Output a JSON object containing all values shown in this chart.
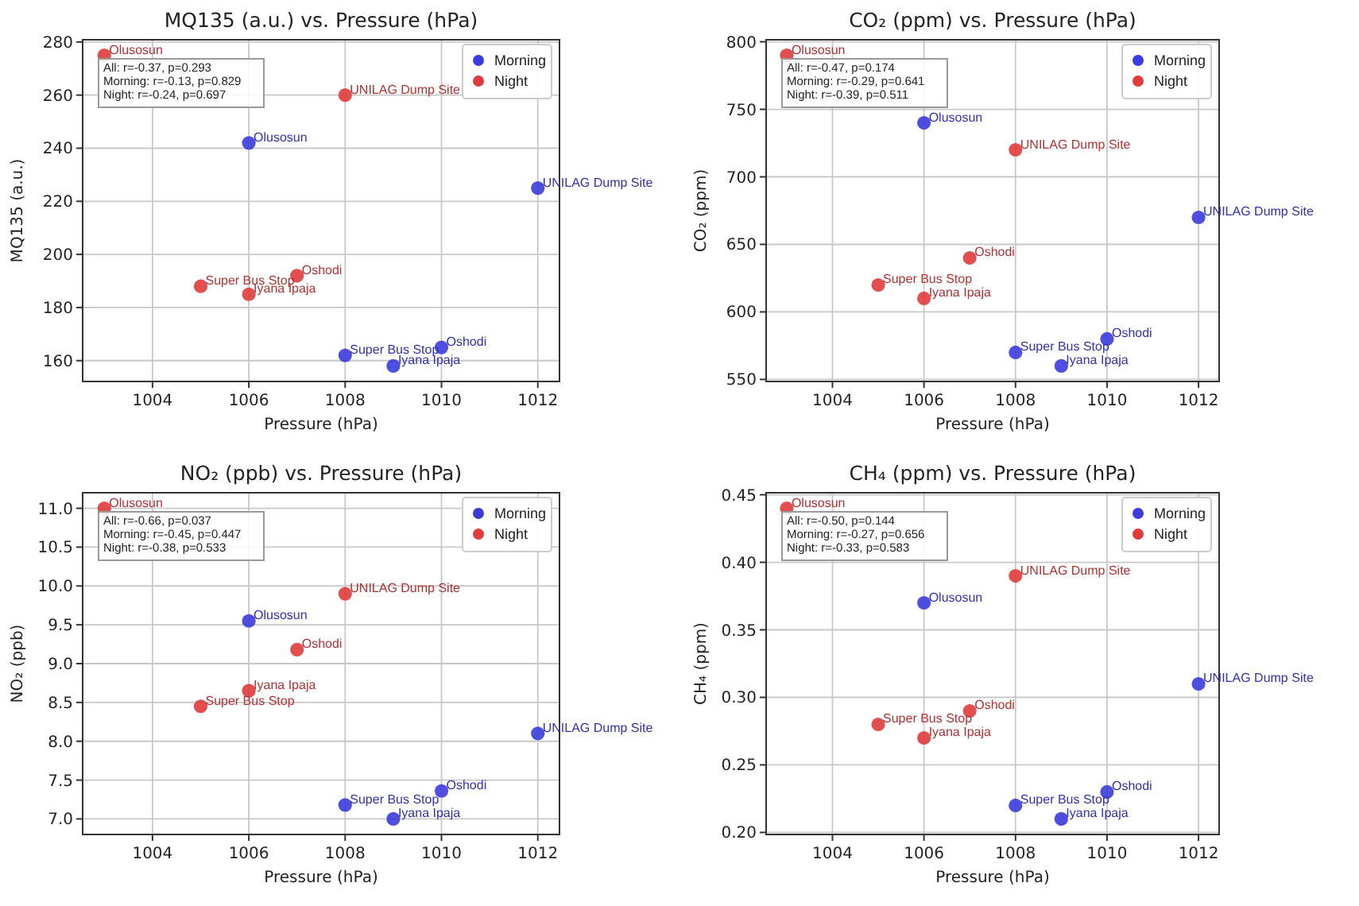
{
  "chart_data": [
    {
      "type": "scatter",
      "title": "MQ135 (a.u.) vs. Pressure (hPa)",
      "xlabel": "Pressure (hPa)",
      "ylabel": "MQ135 (a.u.)",
      "xlim": [
        1002.55,
        1012.45
      ],
      "xticks": [
        1004,
        1006,
        1008,
        1010,
        1012
      ],
      "ylim": [
        152.15,
        280.85
      ],
      "yticks": [
        160,
        180,
        200,
        220,
        240,
        260,
        280
      ],
      "grid": true,
      "legend": "top right",
      "marker": "circle",
      "series": [
        {
          "name": "Morning",
          "color": "#3c3cdc",
          "x": [
            1006,
            1012,
            1008,
            1010,
            1009
          ],
          "values": [
            242,
            225,
            162,
            165,
            158
          ]
        },
        {
          "name": "Night",
          "color": "#e03c3c",
          "x": [
            1003,
            1008,
            1007,
            1005,
            1006
          ],
          "values": [
            275,
            260,
            192,
            188,
            185
          ]
        }
      ],
      "annotations": [
        "All: r=-0.37, p=0.293",
        "Morning: r=-0.13, p=0.829",
        "Night: r=-0.24, p=0.697",
        {
          "text": "Olusosun",
          "x": 1006,
          "y": 242
        },
        {
          "text": "UNILAG Dump Site",
          "x": 1012,
          "y": 225
        },
        {
          "text": "Super Bus Stop",
          "x": 1008,
          "y": 162
        },
        {
          "text": "Oshodi",
          "x": 1010,
          "y": 165
        },
        {
          "text": "Iyana Ipaja",
          "x": 1009,
          "y": 158
        },
        {
          "text": "Olusosun",
          "x": 1003,
          "y": 275
        },
        {
          "text": "UNILAG Dump Site",
          "x": 1008,
          "y": 260
        },
        {
          "text": "Oshodi",
          "x": 1007,
          "y": 192
        },
        {
          "text": "Super Bus Stop",
          "x": 1005,
          "y": 188
        },
        {
          "text": "Iyana Ipaja",
          "x": 1006,
          "y": 185
        }
      ]
    },
    {
      "type": "scatter",
      "title": "CO₂ (ppm) vs. Pressure (hPa)",
      "xlabel": "Pressure (hPa)",
      "ylabel": "CO₂ (ppm)",
      "xlim": [
        1002.55,
        1012.45
      ],
      "xticks": [
        1004,
        1006,
        1008,
        1010,
        1012
      ],
      "ylim": [
        548.5,
        801.5
      ],
      "yticks": [
        550,
        600,
        650,
        700,
        750,
        800
      ],
      "grid": true,
      "legend": "top right",
      "marker": "circle",
      "series": [
        {
          "name": "Morning",
          "color": "#3c3cdc",
          "x": [
            1006,
            1012,
            1008,
            1010,
            1009
          ],
          "values": [
            740,
            670,
            570,
            580,
            560
          ]
        },
        {
          "name": "Night",
          "color": "#e03c3c",
          "x": [
            1003,
            1008,
            1007,
            1005,
            1006
          ],
          "values": [
            790,
            720,
            640,
            620,
            610
          ]
        }
      ],
      "annotations": [
        "All: r=-0.47, p=0.174",
        "Morning: r=-0.29, p=0.641",
        "Night: r=-0.39, p=0.511",
        {
          "text": "Olusosun",
          "x": 1006,
          "y": 740
        },
        {
          "text": "UNILAG Dump Site",
          "x": 1012,
          "y": 670
        },
        {
          "text": "Super Bus Stop",
          "x": 1008,
          "y": 570
        },
        {
          "text": "Oshodi",
          "x": 1010,
          "y": 580
        },
        {
          "text": "Iyana Ipaja",
          "x": 1009,
          "y": 560
        },
        {
          "text": "Olusosun",
          "x": 1003,
          "y": 790
        },
        {
          "text": "UNILAG Dump Site",
          "x": 1008,
          "y": 720
        },
        {
          "text": "Oshodi",
          "x": 1007,
          "y": 640
        },
        {
          "text": "Super Bus Stop",
          "x": 1005,
          "y": 620
        },
        {
          "text": "Iyana Ipaja",
          "x": 1006,
          "y": 610
        }
      ]
    },
    {
      "type": "scatter",
      "title": "NO₂ (ppb) vs. Pressure (hPa)",
      "xlabel": "Pressure (hPa)",
      "ylabel": "NO₂ (ppb)",
      "xlim": [
        1002.55,
        1012.45
      ],
      "xticks": [
        1004,
        1006,
        1008,
        1010,
        1012
      ],
      "ylim": [
        6.8,
        11.2
      ],
      "yticks": [
        {
          "value": 7,
          "label": "7.0"
        },
        7.5,
        {
          "value": 8,
          "label": "8.0"
        },
        8.5,
        {
          "value": 9,
          "label": "9.0"
        },
        9.5,
        {
          "value": 10,
          "label": "10.0"
        },
        10.5,
        {
          "value": 11,
          "label": "11.0"
        }
      ],
      "grid": true,
      "legend": "top right",
      "marker": "circle",
      "series": [
        {
          "name": "Morning",
          "color": "#3c3cdc",
          "x": [
            1006,
            1012,
            1008,
            1010,
            1009
          ],
          "values": [
            9.55,
            8.1,
            7.18,
            7.36,
            7.0
          ]
        },
        {
          "name": "Night",
          "color": "#e03c3c",
          "x": [
            1003,
            1008,
            1007,
            1005,
            1006
          ],
          "values": [
            11.0,
            9.9,
            9.18,
            8.45,
            8.65
          ]
        }
      ],
      "annotations": [
        "All: r=-0.66, p=0.037",
        "Morning: r=-0.45, p=0.447",
        "Night: r=-0.38, p=0.533",
        {
          "text": "Olusosun",
          "x": 1006,
          "y": 9.55
        },
        {
          "text": "UNILAG Dump Site",
          "x": 1012,
          "y": 8.1
        },
        {
          "text": "Super Bus Stop",
          "x": 1008,
          "y": 7.18
        },
        {
          "text": "Oshodi",
          "x": 1010,
          "y": 7.36
        },
        {
          "text": "Iyana Ipaja",
          "x": 1009,
          "y": 7.0
        },
        {
          "text": "Olusosun",
          "x": 1003,
          "y": 11.0
        },
        {
          "text": "UNILAG Dump Site",
          "x": 1008,
          "y": 9.9
        },
        {
          "text": "Oshodi",
          "x": 1007,
          "y": 9.18
        },
        {
          "text": "Super Bus Stop",
          "x": 1005,
          "y": 8.45
        },
        {
          "text": "Iyana Ipaja",
          "x": 1006,
          "y": 8.65
        }
      ]
    },
    {
      "type": "scatter",
      "title": "CH₄ (ppm) vs. Pressure (hPa)",
      "xlabel": "Pressure (hPa)",
      "ylabel": "CH₄ (ppm)",
      "xlim": [
        1002.55,
        1012.45
      ],
      "xticks": [
        1004,
        1006,
        1008,
        1010,
        1012
      ],
      "ylim": [
        0.1985,
        0.4515
      ],
      "yticks": [
        {
          "value": 0.2,
          "label": "0.20"
        },
        0.25,
        {
          "value": 0.3,
          "label": "0.30"
        },
        0.35,
        {
          "value": 0.4,
          "label": "0.40"
        },
        0.45
      ],
      "grid": true,
      "legend": "top right",
      "marker": "circle",
      "series": [
        {
          "name": "Morning",
          "color": "#3c3cdc",
          "x": [
            1006,
            1012,
            1008,
            1010,
            1009
          ],
          "values": [
            0.37,
            0.31,
            0.22,
            0.23,
            0.21
          ]
        },
        {
          "name": "Night",
          "color": "#e03c3c",
          "x": [
            1003,
            1008,
            1007,
            1005,
            1006
          ],
          "values": [
            0.44,
            0.39,
            0.29,
            0.28,
            0.27
          ]
        }
      ],
      "annotations": [
        "All: r=-0.50, p=0.144",
        "Morning: r=-0.27, p=0.656",
        "Night: r=-0.33, p=0.583",
        {
          "text": "Olusosun",
          "x": 1006,
          "y": 0.37
        },
        {
          "text": "UNILAG Dump Site",
          "x": 1012,
          "y": 0.31
        },
        {
          "text": "Super Bus Stop",
          "x": 1008,
          "y": 0.22
        },
        {
          "text": "Oshodi",
          "x": 1010,
          "y": 0.23
        },
        {
          "text": "Iyana Ipaja",
          "x": 1009,
          "y": 0.21
        },
        {
          "text": "Olusosun",
          "x": 1003,
          "y": 0.44
        },
        {
          "text": "UNILAG Dump Site",
          "x": 1008,
          "y": 0.39
        },
        {
          "text": "Oshodi",
          "x": 1007,
          "y": 0.29
        },
        {
          "text": "Super Bus Stop",
          "x": 1005,
          "y": 0.28
        },
        {
          "text": "Iyana Ipaja",
          "x": 1006,
          "y": 0.27
        }
      ]
    }
  ]
}
